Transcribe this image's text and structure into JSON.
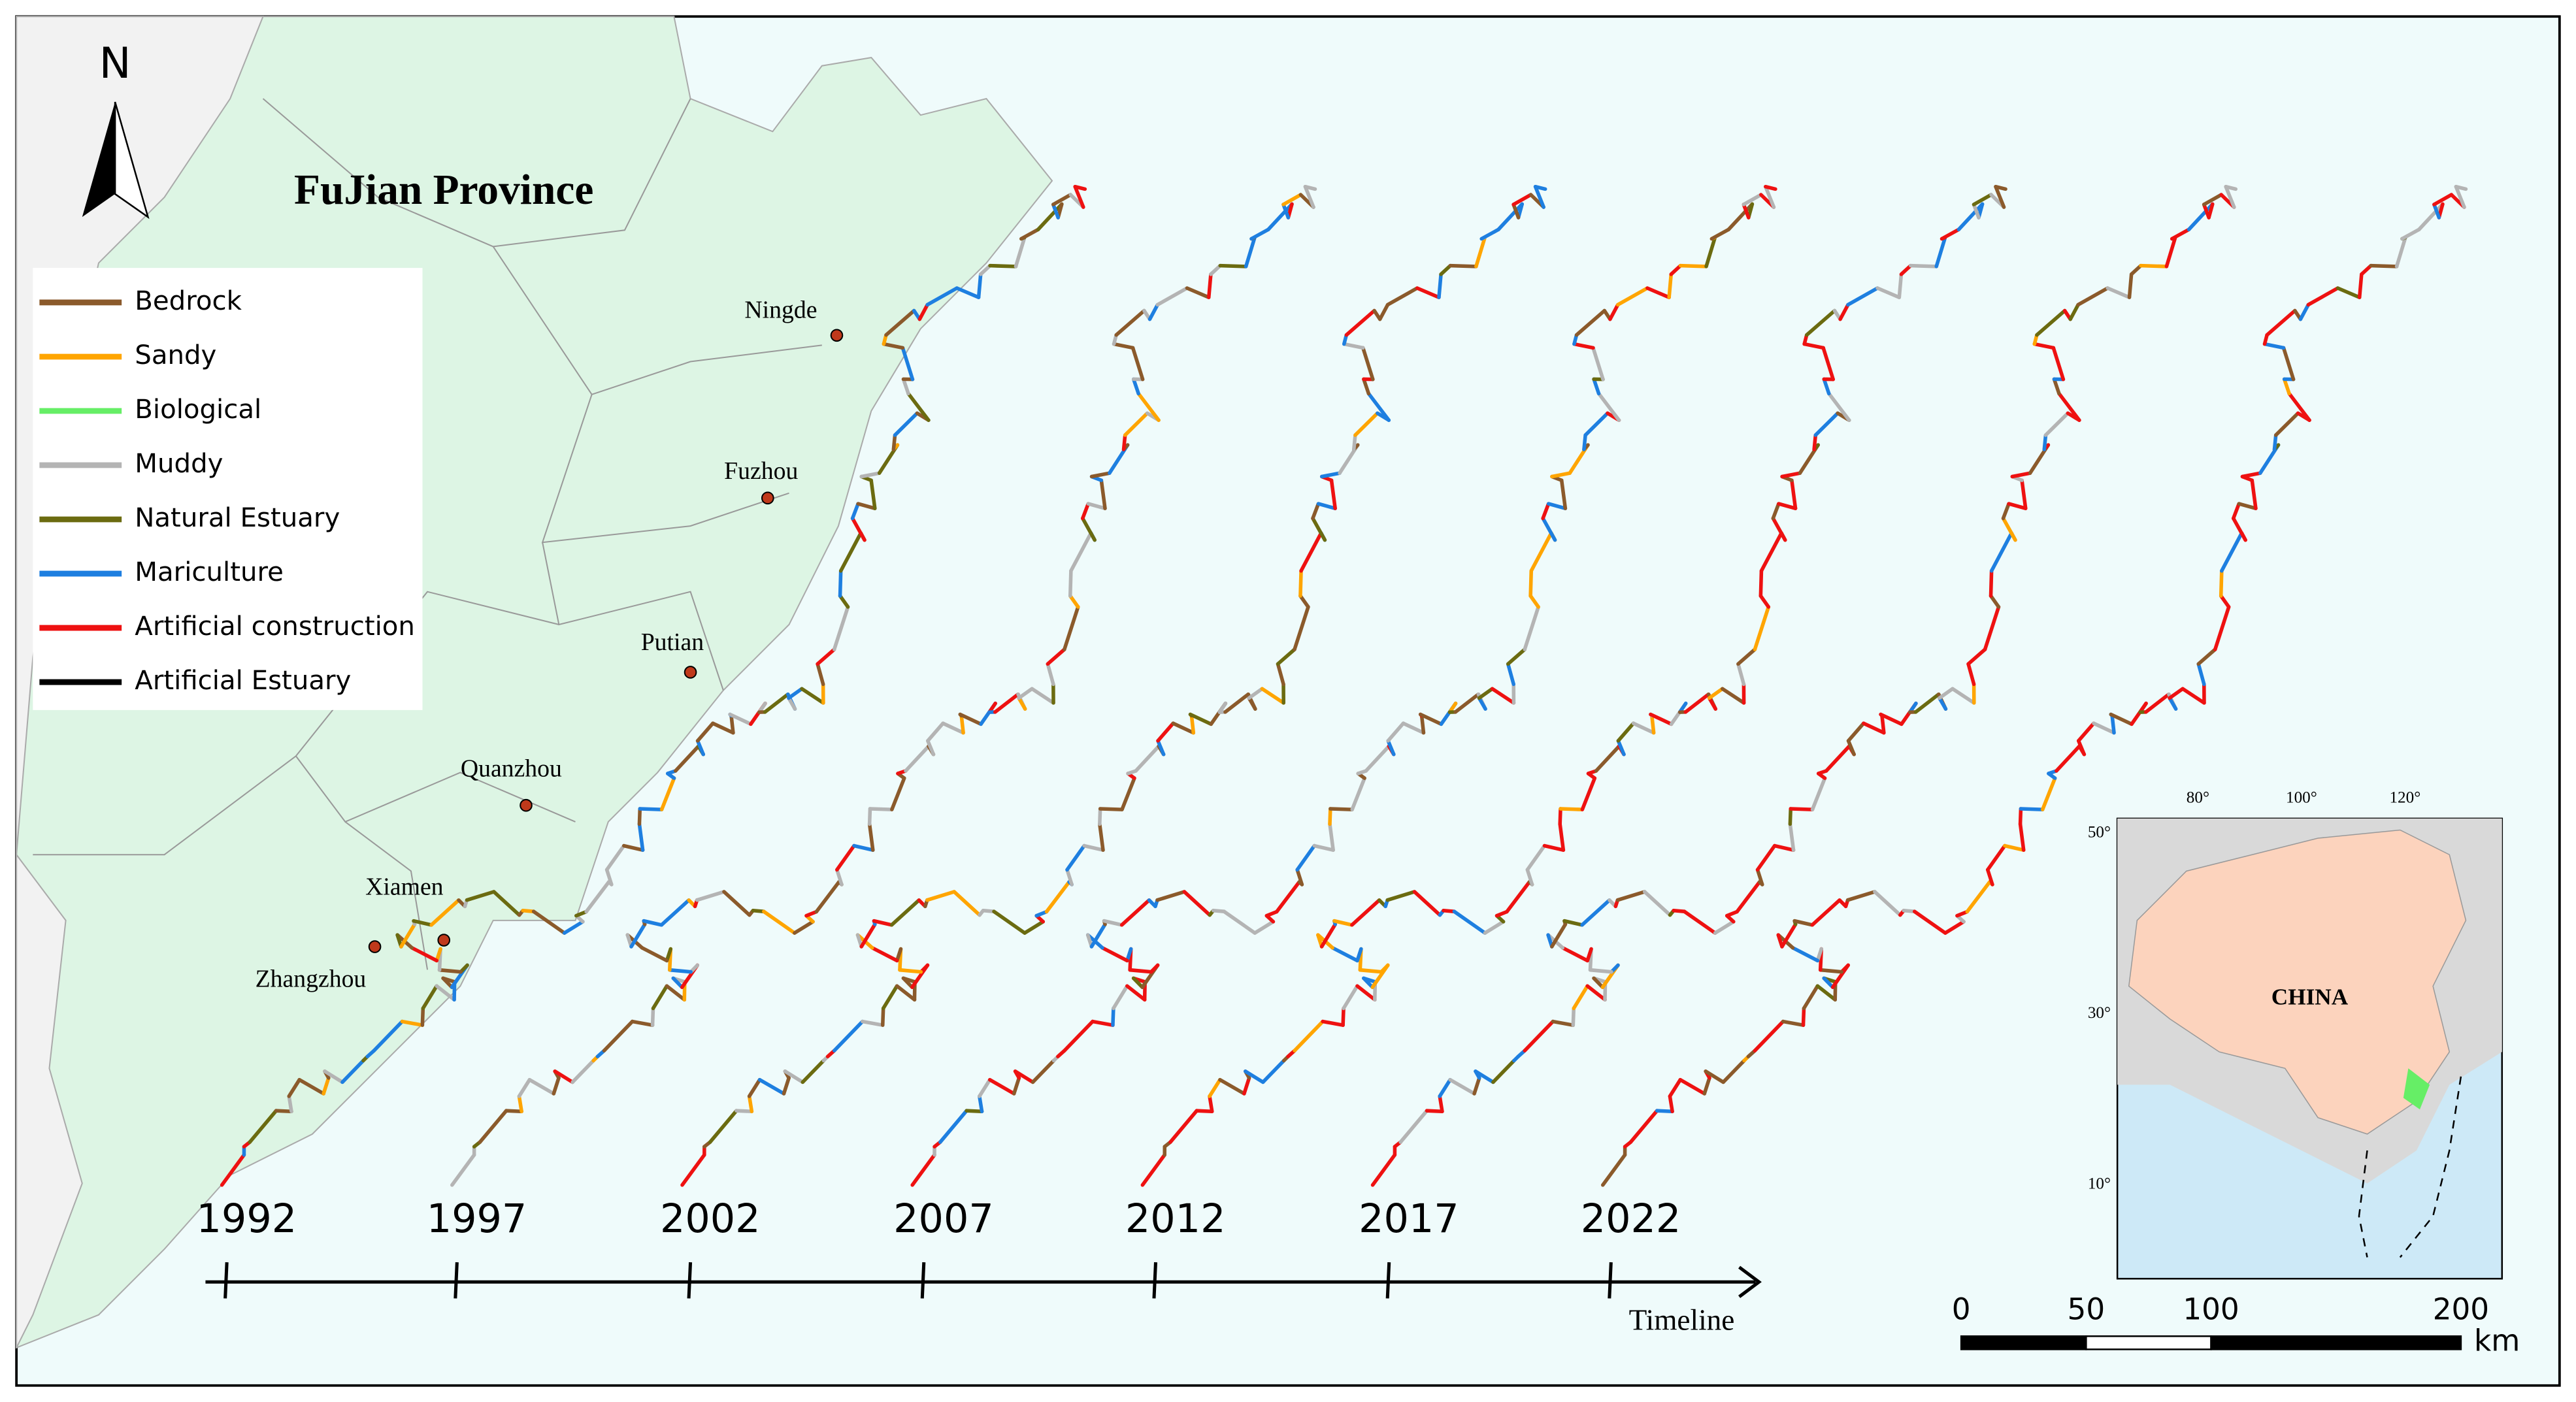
{
  "map": {
    "title": "FuJian Province",
    "north": "N",
    "legend": [
      {
        "label": "Bedrock",
        "color": "#8b5a2b"
      },
      {
        "label": "Sandy",
        "color": "#ffa500"
      },
      {
        "label": "Biological",
        "color": "#66ee66"
      },
      {
        "label": "Muddy",
        "color": "#b4b4b4"
      },
      {
        "label": "Natural Estuary",
        "color": "#6b6b10"
      },
      {
        "label": "Mariculture",
        "color": "#1e7fe0"
      },
      {
        "label": "Artificial construction",
        "color": "#ee1111"
      },
      {
        "label": "Artificial Estuary",
        "color": "#000000"
      }
    ],
    "cities": [
      {
        "name": "Ningde"
      },
      {
        "name": "Fuzhou"
      },
      {
        "name": "Putian"
      },
      {
        "name": "Quanzhou"
      },
      {
        "name": "Xiamen"
      },
      {
        "name": "Zhangzhou"
      }
    ],
    "timeline": {
      "years": [
        1992,
        1997,
        2002,
        2007,
        2012,
        2017,
        2022
      ],
      "label": "Timeline"
    },
    "inset": {
      "label": "CHINA",
      "lon_labels": [
        "80°",
        "100°",
        "120°"
      ],
      "lat_labels": [
        "50°",
        "30°",
        "10°"
      ]
    },
    "scale_bar": {
      "ticks": [
        0,
        50,
        100,
        200
      ],
      "unit": "km"
    }
  }
}
